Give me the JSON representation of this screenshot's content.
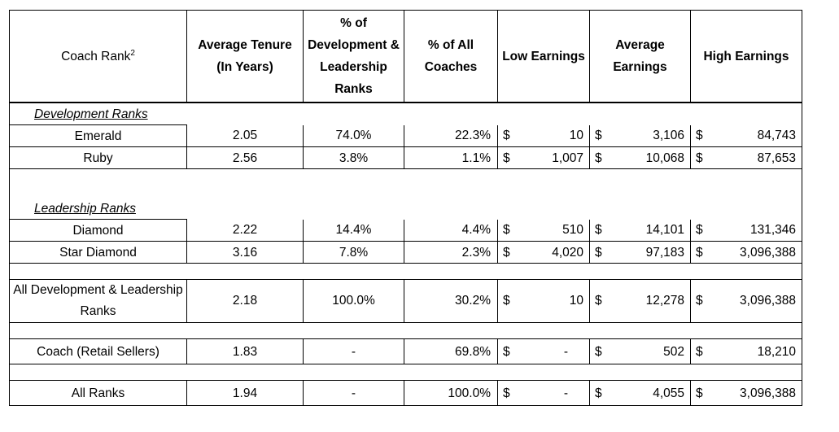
{
  "header": {
    "coach_rank": "Coach Rank",
    "coach_rank_sup": "2",
    "avg_tenure": "Average Tenure (In Years)",
    "pct_dev_lead": "% of Development & Leadership Ranks",
    "pct_all": "% of All Coaches",
    "low": "Low Earnings",
    "avg": "Average Earnings",
    "high": "High Earnings"
  },
  "sections": {
    "development": "Development Ranks",
    "leadership": "Leadership Ranks"
  },
  "currency": "$",
  "rows": {
    "emerald": {
      "name": "Emerald",
      "tenure": "2.05",
      "pct_dl": "74.0%",
      "pct_all": "22.3%",
      "low": "10",
      "avg": "3,106",
      "high": "84,743"
    },
    "ruby": {
      "name": "Ruby",
      "tenure": "2.56",
      "pct_dl": "3.8%",
      "pct_all": "1.1%",
      "low": "1,007",
      "avg": "10,068",
      "high": "87,653"
    },
    "diamond": {
      "name": "Diamond",
      "tenure": "2.22",
      "pct_dl": "14.4%",
      "pct_all": "4.4%",
      "low": "510",
      "avg": "14,101",
      "high": "131,346"
    },
    "star_diamond": {
      "name": "Star Diamond",
      "tenure": "3.16",
      "pct_dl": "7.8%",
      "pct_all": "2.3%",
      "low": "4,020",
      "avg": "97,183",
      "high": "3,096,388"
    },
    "all_dev_lead": {
      "name": "All Development & Leadership Ranks",
      "tenure": "2.18",
      "pct_dl": "100.0%",
      "pct_all": "30.2%",
      "low": "10",
      "avg": "12,278",
      "high": "3,096,388"
    },
    "coach_retail": {
      "name": "Coach (Retail Sellers)",
      "tenure": "1.83",
      "pct_dl": "-",
      "pct_all": "69.8%",
      "low": "-",
      "avg": "502",
      "high": "18,210"
    },
    "all_ranks": {
      "name": "All Ranks",
      "tenure": "1.94",
      "pct_dl": "-",
      "pct_all": "100.0%",
      "low": "-",
      "avg": "4,055",
      "high": "3,096,388"
    }
  }
}
